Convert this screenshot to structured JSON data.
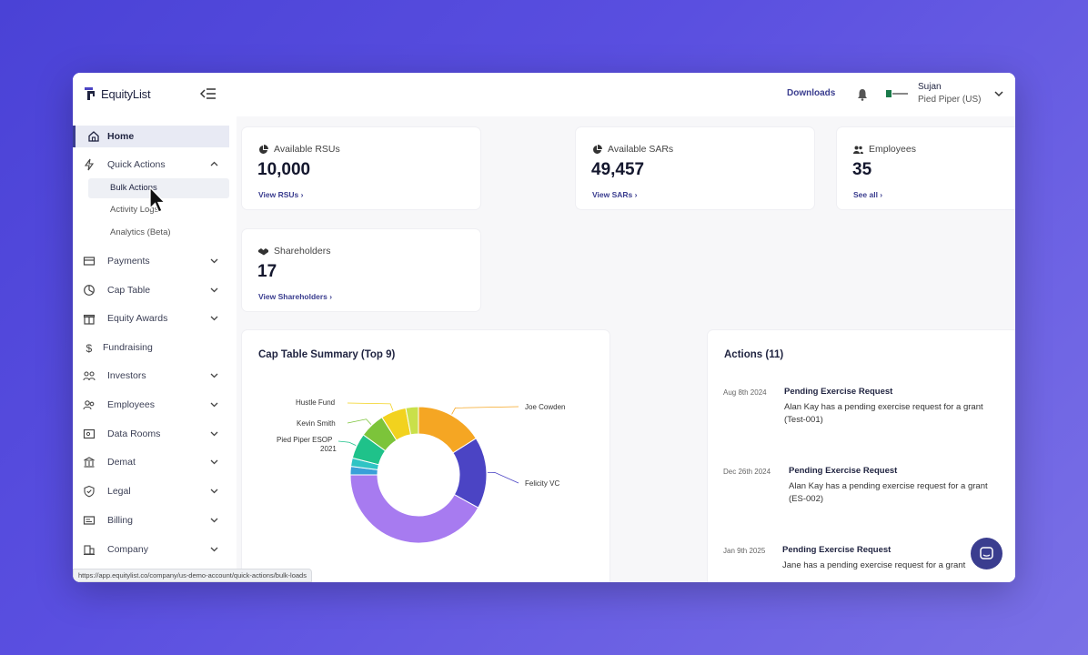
{
  "app": {
    "name": "EquityList"
  },
  "header": {
    "downloads_label": "Downloads",
    "user": {
      "name": "Sujan",
      "company": "Pied Piper (US)"
    }
  },
  "sidebar": {
    "items": [
      {
        "label": "Home",
        "icon": "home-icon",
        "active": true
      },
      {
        "label": "Quick Actions",
        "icon": "lightning-icon",
        "expanded": true
      },
      {
        "label": "Payments",
        "icon": "payments-icon"
      },
      {
        "label": "Cap Table",
        "icon": "pie-icon"
      },
      {
        "label": "Equity Awards",
        "icon": "gift-icon"
      },
      {
        "label": "Fundraising",
        "icon": "dollar-icon"
      },
      {
        "label": "Investors",
        "icon": "investors-icon"
      },
      {
        "label": "Employees",
        "icon": "employees-icon"
      },
      {
        "label": "Data Rooms",
        "icon": "data-room-icon"
      },
      {
        "label": "Demat",
        "icon": "bank-icon"
      },
      {
        "label": "Legal",
        "icon": "shield-icon"
      },
      {
        "label": "Billing",
        "icon": "billing-icon"
      },
      {
        "label": "Company",
        "icon": "building-icon"
      }
    ],
    "quick_actions_sub": [
      {
        "label": "Bulk Actions"
      },
      {
        "label": "Activity Logs"
      },
      {
        "label": "Analytics (Beta)"
      }
    ]
  },
  "stats": [
    {
      "title": "Available RSUs",
      "value": "10,000",
      "link": "View RSUs ›"
    },
    {
      "title": "Available SARs",
      "value": "49,457",
      "link": "View SARs ›"
    },
    {
      "title": "Employees",
      "value": "35",
      "link": "See all ›"
    },
    {
      "title": "Shareholders",
      "value": "17",
      "link": "View Shareholders ›"
    }
  ],
  "cap_table": {
    "title": "Cap Table Summary (Top 9)",
    "labels": {
      "hustle_fund": "Hustle Fund",
      "kevin_smith": "Kevin Smith",
      "pied_piper_esop_1": "Pied Piper ESOP",
      "pied_piper_esop_2": "2021",
      "joe_cowden": "Joe Cowden",
      "felicity_vc": "Felicity VC"
    }
  },
  "chart_data": {
    "type": "pie",
    "title": "Cap Table Summary (Top 9)",
    "donut": true,
    "slices": [
      {
        "label": "Joe Cowden",
        "value": 16,
        "color": "#f5a623"
      },
      {
        "label": "Felicity VC",
        "value": 17,
        "color": "#4b44c4"
      },
      {
        "label": "",
        "value": 42,
        "color": "#a77bf0"
      },
      {
        "label": "",
        "value": 2,
        "color": "#3aa0d8"
      },
      {
        "label": "",
        "value": 2,
        "color": "#2fc4c4"
      },
      {
        "label": "Pied Piper ESOP 2021",
        "value": 6,
        "color": "#1fc28a"
      },
      {
        "label": "Kevin Smith",
        "value": 6,
        "color": "#7cc43a"
      },
      {
        "label": "Hustle Fund",
        "value": 6,
        "color": "#f2d21e"
      },
      {
        "label": "",
        "value": 3,
        "color": "#c9e04a"
      }
    ]
  },
  "actions": {
    "title": "Actions (11)",
    "items": [
      {
        "date": "Aug 8th 2024",
        "title": "Pending Exercise Request",
        "desc": "Alan Kay has a pending exercise request for a grant (Test-001)"
      },
      {
        "date": "Dec 26th 2024",
        "title": "Pending Exercise Request",
        "desc": "Alan Kay has a pending exercise request for a grant (ES-002)"
      },
      {
        "date": "Jan 9th 2025",
        "title": "Pending Exercise Request",
        "desc": "Jane has a pending exercise request for a grant"
      }
    ]
  },
  "status_bar": {
    "url": "https://app.equitylist.co/company/us-demo-account/quick-actions/bulk-loads"
  },
  "colors": {
    "accent": "#3a3d8f",
    "background": "#5a4fe0"
  }
}
